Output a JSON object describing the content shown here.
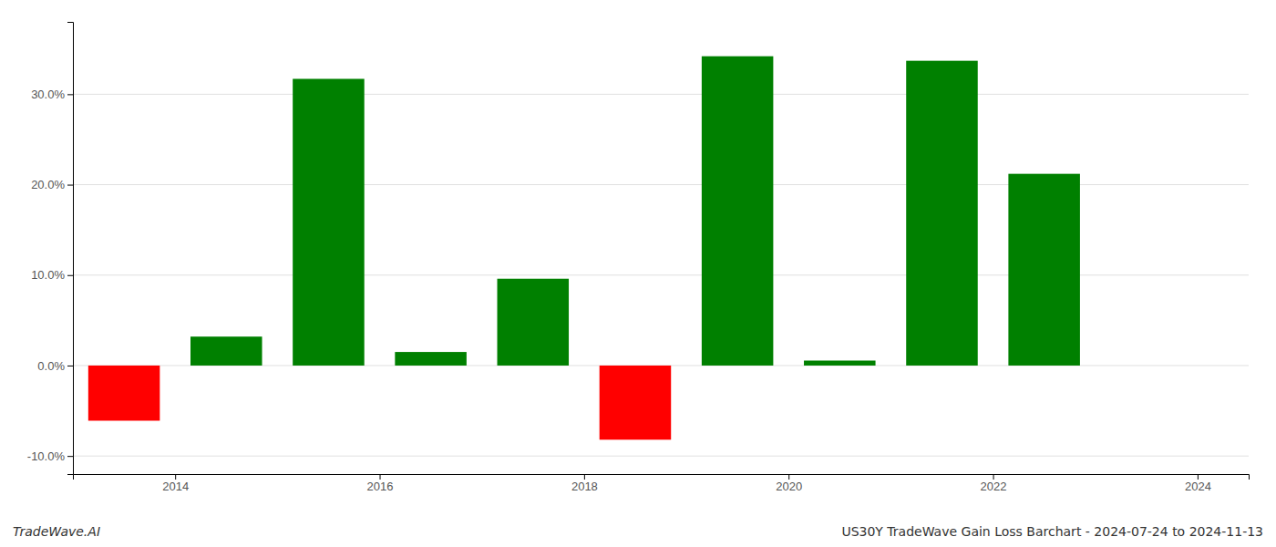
{
  "chart_data": {
    "type": "bar",
    "title": "US30Y TradeWave Gain Loss Barchart - 2024-07-24 to 2024-11-13",
    "annotations": [
      "TradeWave.AI"
    ],
    "x": [
      2013.5,
      2014.5,
      2015.5,
      2016.5,
      2017.5,
      2018.5,
      2019.5,
      2020.5,
      2021.5,
      2022.5,
      2023.5
    ],
    "values": [
      -6.1,
      3.2,
      31.7,
      1.5,
      9.6,
      -8.2,
      34.2,
      0.55,
      33.7,
      21.2,
      0.0
    ],
    "colors": [
      "#ff0000",
      "#008000",
      "#008000",
      "#008000",
      "#008000",
      "#ff0000",
      "#008000",
      "#008000",
      "#008000",
      "#008000",
      "#008000"
    ],
    "xlim": [
      2013.0,
      2024.5
    ],
    "xticks": [
      2014,
      2016,
      2018,
      2020,
      2022,
      2024
    ],
    "ylim": [
      -12,
      38
    ],
    "yticks": [
      {
        "value": -10,
        "label": "-10.0%"
      },
      {
        "value": 0,
        "label": "0.0%"
      },
      {
        "value": 10,
        "label": "10.0%"
      },
      {
        "value": 20,
        "label": "20.0%"
      },
      {
        "value": 30,
        "label": "30.0%"
      }
    ],
    "grid": true
  }
}
